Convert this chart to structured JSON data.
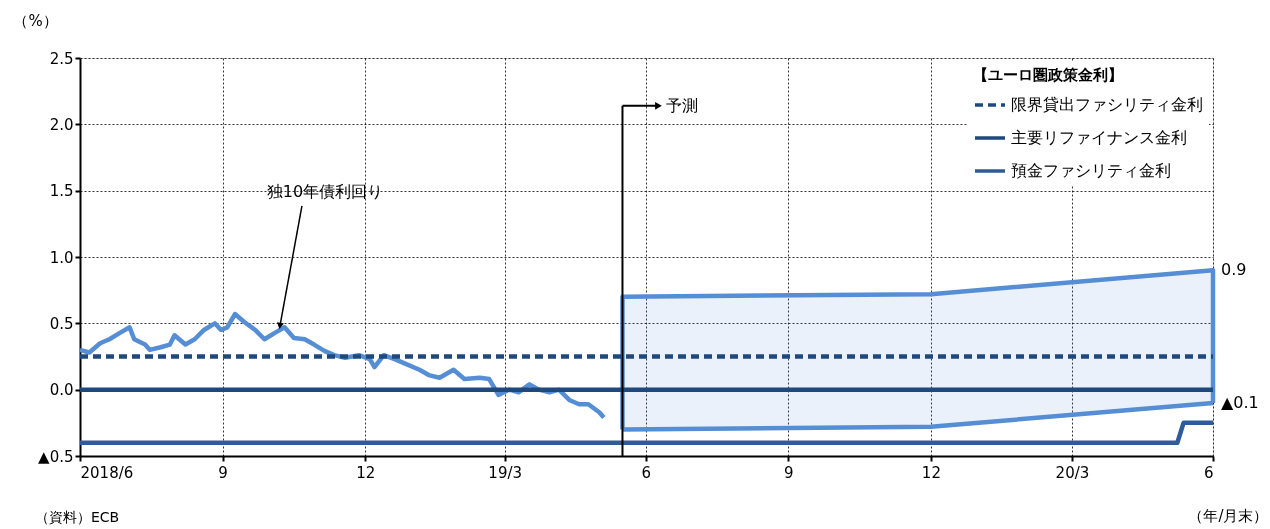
{
  "chart_data": {
    "type": "line",
    "legend_title": "【ユーロ圏政策金利】",
    "ylabel": "（%）",
    "xlabel": "（年/月末）",
    "xlim": [
      "2018-06-30",
      "2020-06-30"
    ],
    "xticks": [
      {
        "value": "2018-06-30",
        "label": "2018/6"
      },
      {
        "value": "2018-09-30",
        "label": "9"
      },
      {
        "value": "2018-12-31",
        "label": "12"
      },
      {
        "value": "2019-03-31",
        "label": "19/3"
      },
      {
        "value": "2019-06-30",
        "label": "6"
      },
      {
        "value": "2019-09-30",
        "label": "9"
      },
      {
        "value": "2019-12-31",
        "label": "12"
      },
      {
        "value": "2020-03-31",
        "label": "20/3"
      },
      {
        "value": "2020-06-30",
        "label": "6"
      }
    ],
    "ylim": [
      -0.5,
      2.5
    ],
    "yticks": [
      {
        "value": -0.5,
        "label": "▲0.5"
      },
      {
        "value": 0,
        "label": "0.0"
      },
      0.5,
      {
        "value": 1,
        "label": "1.0"
      },
      1.5,
      {
        "value": 2,
        "label": "2.0"
      },
      2.5
    ],
    "grid": true,
    "legend": "top right",
    "series": [
      {
        "color": "#558ed5",
        "line_style": "solid",
        "x": [
          "2018-06-30",
          "2018-07-06",
          "2018-07-13",
          "2018-07-19",
          "2018-07-26",
          "2018-08-01",
          "2018-08-04",
          "2018-08-11",
          "2018-08-14",
          "2018-08-21",
          "2018-08-27",
          "2018-08-30",
          "2018-09-06",
          "2018-09-12",
          "2018-09-18",
          "2018-09-25",
          "2018-09-29",
          "2018-10-03",
          "2018-10-08",
          "2018-10-14",
          "2018-10-21",
          "2018-10-27",
          "2018-11-03",
          "2018-11-09",
          "2018-11-15",
          "2018-11-22",
          "2018-11-28",
          "2018-12-05",
          "2018-12-11",
          "2018-12-18",
          "2018-12-27",
          "2019-01-03",
          "2019-01-06",
          "2019-01-12",
          "2019-01-19",
          "2019-01-25",
          "2019-02-04",
          "2019-02-10",
          "2019-02-17",
          "2019-02-26",
          "2019-03-05",
          "2019-03-15",
          "2019-03-21",
          "2019-03-27",
          "2019-04-03",
          "2019-04-09",
          "2019-04-16",
          "2019-04-22",
          "2019-04-29",
          "2019-05-05",
          "2019-05-12",
          "2019-05-18",
          "2019-05-24",
          "2019-05-31",
          "2019-06-03"
        ],
        "values": [
          0.3,
          0.28,
          0.35,
          0.38,
          0.43,
          0.47,
          0.38,
          0.34,
          0.3,
          0.32,
          0.34,
          0.41,
          0.34,
          0.38,
          0.45,
          0.5,
          0.45,
          0.47,
          0.57,
          0.51,
          0.45,
          0.38,
          0.43,
          0.47,
          0.39,
          0.38,
          0.34,
          0.29,
          0.26,
          0.24,
          0.26,
          0.23,
          0.17,
          0.26,
          0.23,
          0.2,
          0.15,
          0.11,
          0.09,
          0.15,
          0.08,
          0.09,
          0.08,
          -0.04,
          0.0,
          -0.02,
          0.04,
          0.0,
          -0.02,
          0.0,
          -0.08,
          -0.11,
          -0.11,
          -0.17,
          -0.21
        ]
      },
      {
        "name": "限界貸出ファシリティ金利",
        "color": "#1f497d",
        "line_style": "dashed",
        "x": [
          "2018-06-30",
          "2020-06-30"
        ],
        "values": [
          0.25,
          0.25
        ]
      },
      {
        "name": "主要リファイナンス金利",
        "color": "#1f497d",
        "line_style": "solid",
        "x": [
          "2018-06-30",
          "2020-06-30"
        ],
        "values": [
          0,
          0
        ]
      },
      {
        "name": "預金ファシリティ金利",
        "color": "#2e5c9a",
        "line_style": "solid",
        "x": [
          "2018-06-30",
          "2020-06-07",
          "2020-06-11",
          "2020-06-30"
        ],
        "values": [
          -0.4,
          -0.4,
          -0.25,
          -0.25
        ]
      },
      {
        "color": "#558ed5",
        "line_style": "solid",
        "x": [
          "2019-06-15",
          "2019-06-15",
          "2019-12-31",
          "2020-06-30",
          "2020-06-30"
        ],
        "values": [
          -0.3,
          0.7,
          0.72,
          0.9,
          -0.1
        ],
        "lower": [
          -0.3,
          -0.3,
          -0.28,
          -0.1,
          -0.1
        ],
        "upper": [
          0.7,
          0.7,
          0.72,
          0.9,
          0.9
        ]
      },
      {
        "color": "#558ed5",
        "line_style": "solid",
        "x": [
          "2019-06-15",
          "2019-12-31",
          "2020-06-30"
        ],
        "values": [
          -0.3,
          -0.28,
          -0.1
        ]
      }
    ],
    "ref_lines": [
      {
        "axis": "x",
        "value": "2019-06-15",
        "label": "予測",
        "color": "#000000"
      }
    ],
    "annotations": [
      {
        "text": "独10年債利回り",
        "x": "2018-11-06",
        "y": 0.45
      },
      {
        "text": "0.9",
        "x": "2020-06-30",
        "y": 0.9
      },
      {
        "text": "▲0.1",
        "x": "2020-06-30",
        "y": -0.1
      },
      "（資料）ECB"
    ]
  }
}
